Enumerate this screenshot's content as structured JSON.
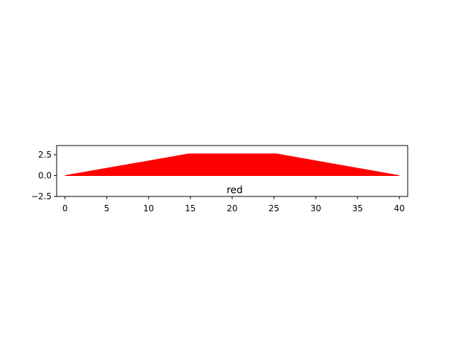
{
  "chart_data": {
    "type": "area",
    "title": "",
    "xlabel": "",
    "ylabel": "",
    "xlim": [
      -1,
      41
    ],
    "ylim": [
      -2.5,
      3.6
    ],
    "x_ticks": [
      0,
      5,
      10,
      15,
      20,
      25,
      30,
      35,
      40
    ],
    "y_ticks": [
      -2.5,
      0.0,
      2.5
    ],
    "x_tick_labels": [
      "0",
      "5",
      "10",
      "15",
      "20",
      "25",
      "30",
      "35",
      "40"
    ],
    "y_tick_labels": [
      "−2.5",
      "0.0",
      "2.5"
    ],
    "grid": false,
    "series": [
      {
        "color": "#ff0000",
        "x": [
          0,
          14.8,
          25.3,
          40
        ],
        "y": [
          0,
          2.6,
          2.6,
          0
        ]
      }
    ],
    "annotations": [
      {
        "text": "red",
        "x": 20.3,
        "y": -1.6
      }
    ]
  }
}
